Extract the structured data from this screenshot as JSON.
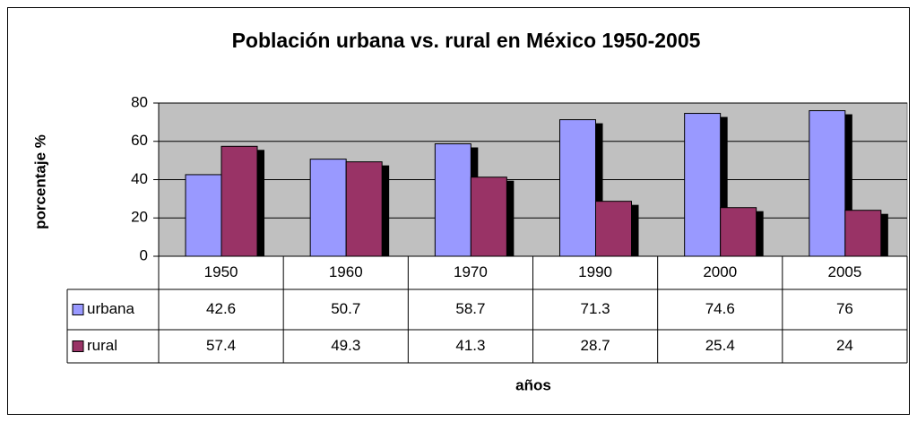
{
  "chart_data": {
    "type": "bar",
    "title": "Población urbana vs. rural en México 1950-2005",
    "y_label": "porcentaje %",
    "x_label": "años",
    "categories": [
      "1950",
      "1960",
      "1970",
      "1990",
      "2000",
      "2005"
    ],
    "series": [
      {
        "name": "urbana",
        "color": "#9999ff",
        "values": [
          42.6,
          50.7,
          58.7,
          71.3,
          74.6,
          76
        ]
      },
      {
        "name": "rural",
        "color": "#993366",
        "values": [
          57.4,
          49.3,
          41.3,
          28.7,
          25.4,
          24
        ]
      }
    ],
    "ylim": [
      0,
      80
    ],
    "yticks": [
      0,
      20,
      40,
      60,
      80
    ],
    "grid": true,
    "plot_background": "#c0c0c0"
  }
}
